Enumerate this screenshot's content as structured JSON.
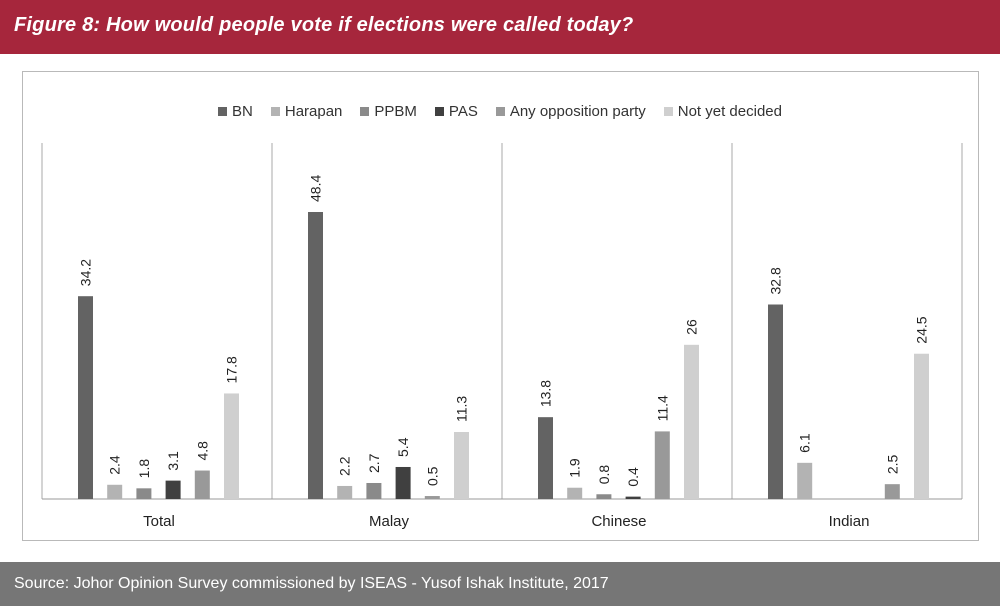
{
  "header": {
    "title": "Figure 8: How would people vote if elections were called today?"
  },
  "footer": {
    "source": "Source: Johor Opinion Survey commissioned by ISEAS - Yusof Ishak Institute, 2017"
  },
  "chart_data": {
    "type": "bar",
    "title": "",
    "xlabel": "",
    "ylabel": "",
    "ylim": [
      0,
      50
    ],
    "grid": false,
    "legend_position": "top-center",
    "categories": [
      "Total",
      "Malay",
      "Chinese",
      "Indian"
    ],
    "series": [
      {
        "name": "BN",
        "color": "#636363",
        "values": [
          34.2,
          48.4,
          13.8,
          32.8
        ]
      },
      {
        "name": "Harapan",
        "color": "#b3b3b3",
        "values": [
          2.4,
          2.2,
          1.9,
          6.1
        ]
      },
      {
        "name": "PPBM",
        "color": "#8a8a8a",
        "values": [
          1.8,
          2.7,
          0.8,
          null
        ]
      },
      {
        "name": "PAS",
        "color": "#404040",
        "values": [
          3.1,
          5.4,
          0.4,
          null
        ]
      },
      {
        "name": "Any opposition party",
        "color": "#999999",
        "values": [
          4.8,
          0.5,
          11.4,
          2.5
        ]
      },
      {
        "name": "Not yet decided",
        "color": "#cfcfcf",
        "values": [
          17.8,
          11.3,
          26,
          24.5
        ]
      }
    ]
  }
}
